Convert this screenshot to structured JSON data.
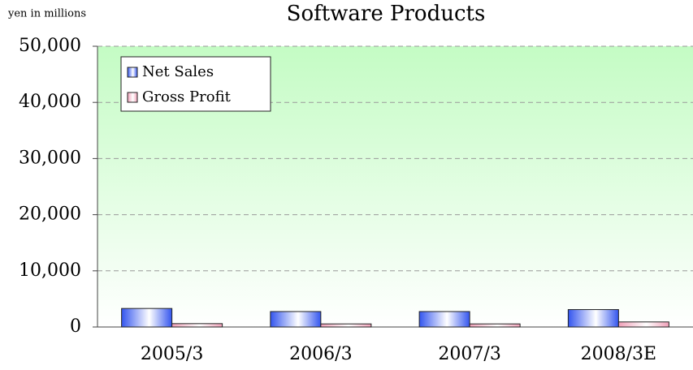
{
  "chart_data": {
    "type": "bar",
    "title": "Software Products",
    "y_label": "yen in millions",
    "categories": [
      "2005/3",
      "2006/3",
      "2007/3",
      "2008/3E"
    ],
    "series": [
      {
        "name": "Net Sales",
        "color": "#3355ee",
        "values": [
          3300,
          2750,
          2750,
          3100
        ]
      },
      {
        "name": "Gross Profit",
        "color": "#f0a0b8",
        "values": [
          600,
          550,
          550,
          900
        ]
      }
    ],
    "ylim": [
      0,
      50000
    ],
    "yticks": [
      0,
      {
        "value": 10000,
        "label": "10,000"
      },
      {
        "value": 20000,
        "label": "20,000"
      },
      {
        "value": 30000,
        "label": "30,000"
      },
      {
        "value": 40000,
        "label": "40,000"
      },
      {
        "value": 50000,
        "label": "50,000"
      }
    ],
    "grid": true,
    "legend": "upper left"
  }
}
